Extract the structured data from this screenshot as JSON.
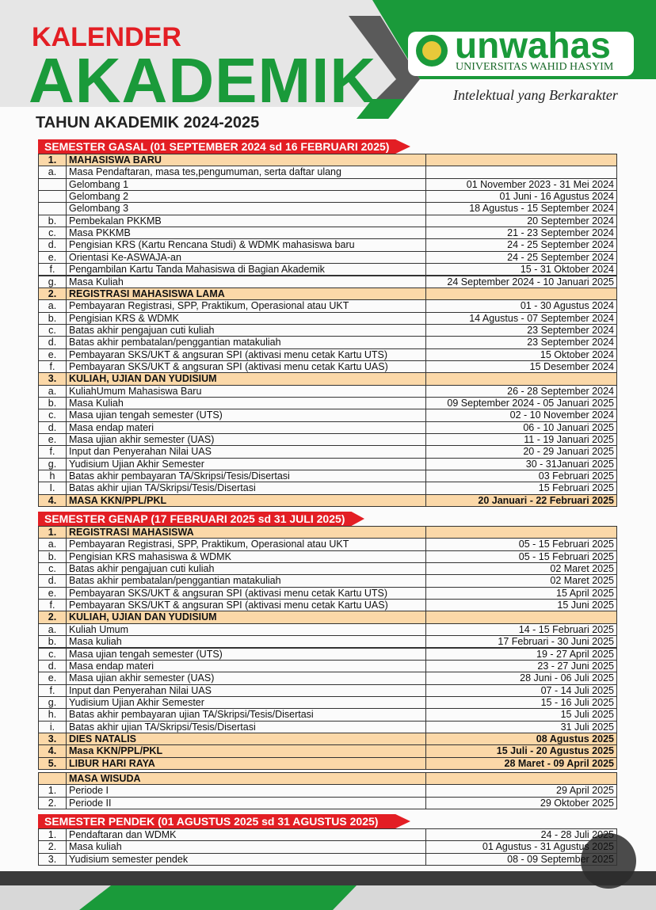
{
  "header": {
    "kalender": "KALENDER",
    "akademik": "AKADEMIK",
    "logo": "unwahas",
    "university": "UNIVERSITAS WAHID HASYIM",
    "tagline": "Intelektual yang Berkarakter",
    "year": "TAHUN AKADEMIK 2024-2025"
  },
  "sections": [
    {
      "title": "SEMESTER GASAL (01 SEPTEMBER 2024 sd 16 FEBRUARI 2025)",
      "groups": [
        {
          "no": "1.",
          "title": "MAHASISWA BARU",
          "rows": [
            {
              "no": "a.",
              "text": "Masa Pendaftaran, masa tes,pengumuman, serta daftar ulang"
            },
            {
              "text": "Gelombang 1",
              "date": "01 November 2023 - 31 Mei 2024"
            },
            {
              "text": "Gelombang 2",
              "date": "01 Juni - 16 Agustus 2024"
            },
            {
              "text": "Gelombang 3",
              "date": "18 Agustus - 15 September 2024"
            },
            {
              "no": "b.",
              "text": "Pembekalan PKKMB",
              "date": "20 September 2024"
            },
            {
              "no": "c.",
              "text": "Masa PKKMB",
              "date": "21 - 23 September 2024"
            },
            {
              "no": "d.",
              "text": "Pengisian KRS (Kartu Rencana Studi) & WDMK mahasiswa baru",
              "date": "24 - 25 September 2024"
            },
            {
              "no": "e.",
              "text": "Orientasi Ke-ASWAJA-an",
              "date": "24 - 25 September 2024"
            },
            {
              "no": "f.",
              "text": "Pengambilan Kartu Tanda Mahasiswa di Bagian Akademik",
              "date": "15 - 31 Oktober 2024"
            },
            {
              "no": "g.",
              "text": "Masa Kuliah",
              "date": "24 September 2024 - 10 Januari 2025"
            }
          ]
        },
        {
          "no": "2.",
          "title": "REGISTRASI MAHASISWA  LAMA",
          "rows": [
            {
              "no": "a.",
              "text": "Pembayaran Registrasi, SPP, Praktikum, Operasional atau UKT",
              "date": "01 - 30 Agustus 2024"
            },
            {
              "no": "b.",
              "text": "Pengisian KRS & WDMK",
              "date": "14 Agustus - 07 September 2024"
            },
            {
              "no": "c.",
              "text": "Batas akhir pengajuan cuti kuliah",
              "date": "23 September 2024"
            },
            {
              "no": "d.",
              "text": "Batas akhir pembatalan/penggantian matakuliah",
              "date": "23 September 2024"
            },
            {
              "no": "e.",
              "text": "Pembayaran SKS/UKT & angsuran SPI (aktivasi menu cetak Kartu UTS)",
              "date": "15 Oktober 2024"
            },
            {
              "no": "f.",
              "text": "Pembayaran SKS/UKT & angsuran SPI (aktivasi menu cetak Kartu UAS)",
              "date": "15 Desember 2024"
            }
          ]
        },
        {
          "no": "3.",
          "title": "KULIAH, UJIAN DAN YUDISIUM",
          "rows": [
            {
              "no": "a.",
              "text": "KuliahUmum Mahasiswa Baru",
              "date": "26 - 28 September 2024"
            },
            {
              "no": "b.",
              "text": "Masa Kuliah",
              "date": "09 September 2024  - 05 Januari 2025"
            },
            {
              "no": "c.",
              "text": "Masa ujian tengah semester (UTS)",
              "date": "02 - 10 November 2024"
            },
            {
              "no": "d.",
              "text": "Masa endap materi",
              "date": "06 - 10 Januari 2025"
            },
            {
              "no": "e.",
              "text": "Masa ujian akhir semester (UAS)",
              "date": "11 - 19 Januari 2025"
            },
            {
              "no": "f.",
              "text": "Input dan Penyerahan Nilai UAS",
              "date": "20 - 29 Januari 2025"
            },
            {
              "no": "g.",
              "text": "Yudisium Ujian Akhir Semester",
              "date": "30 - 31Januari 2025"
            },
            {
              "no": "h",
              "text": "Batas akhir pembayaran TA/Skripsi/Tesis/Disertasi",
              "date": "03 Februari 2025"
            },
            {
              "no": "I.",
              "text": "Batas akhir ujian TA/Skripsi/Tesis/Disertasi",
              "date": "15 Februari 2025"
            }
          ]
        },
        {
          "no": "4.",
          "title": "MASA KKN/PPL/PKL",
          "date": "20 Januari - 22 Februari 2025"
        }
      ]
    },
    {
      "title": "SEMESTER GENAP (17 FEBRUARI 2025 sd 31 JULI 2025)",
      "groups": [
        {
          "no": "1.",
          "title": "REGISTRASI MAHASISWA",
          "rows": [
            {
              "no": "a.",
              "text": "Pembayaran Registrasi, SPP, Praktikum, Operasional atau UKT",
              "date": "05 - 15 Februari 2025"
            },
            {
              "no": "b.",
              "text": "Pengisian KRS mahasiswa & WDMK",
              "date": "05 - 15 Februari 2025"
            },
            {
              "no": "c.",
              "text": "Batas akhir pengajuan cuti kuliah",
              "date": "02 Maret 2025"
            },
            {
              "no": "d.",
              "text": "Batas akhir pembatalan/penggantian matakuliah",
              "date": "02 Maret 2025"
            },
            {
              "no": "e.",
              "text": "Pembayaran SKS/UKT & angsuran SPI (aktivasi menu cetak Kartu UTS)",
              "date": "15 April 2025"
            },
            {
              "no": "f.",
              "text": "Pembayaran SKS/UKT & angsuran SPI (aktivasi menu cetak Kartu UAS)",
              "date": "15 Juni 2025"
            }
          ]
        },
        {
          "no": "2.",
          "title": "KULIAH, UJIAN DAN YUDISIUM",
          "rows": [
            {
              "no": "a.",
              "text": "Kuliah Umum",
              "date": "14 - 15 Februari 2025"
            },
            {
              "no": "b.",
              "text": "Masa kuliah",
              "date": "17 Februari - 30 Juni 2025"
            },
            {
              "no": "c.",
              "text": "Masa ujian tengah semester (UTS)",
              "date": "19 - 27 April 2025"
            },
            {
              "no": "d.",
              "text": "Masa endap materi",
              "date": "23 - 27 Juni 2025"
            },
            {
              "no": "e.",
              "text": "Masa ujian akhir semester (UAS)",
              "date": "28 Juni - 06 Juli 2025"
            },
            {
              "no": "f.",
              "text": "Input dan Penyerahan Nilai UAS",
              "date": "07 - 14 Juli 2025"
            },
            {
              "no": "g.",
              "text": "Yudisium Ujian Akhir Semester",
              "date": "15 - 16 Juli 2025"
            },
            {
              "no": "h.",
              "text": "Batas akhir pembayaran ujian TA/Skripsi/Tesis/Disertasi",
              "date": "15 Juli 2025"
            },
            {
              "no": "i.",
              "text": "Batas akhir ujian TA/Skripsi/Tesis/Disertasi",
              "date": "31 Juli 2025"
            }
          ]
        },
        {
          "no": "3.",
          "title": "DIES NATALIS",
          "date": "08 Agustus 2025"
        },
        {
          "no": "4.",
          "title": "Masa KKN/PPL/PKL",
          "date": "15 Juli - 20 Agustus 2025"
        },
        {
          "no": "5.",
          "title": "LIBUR HARI RAYA",
          "date": "28 Maret - 09 April 2025"
        }
      ]
    },
    {
      "groups": [
        {
          "title": "MASA WISUDA",
          "rows": [
            {
              "no": "1.",
              "text": "Periode I",
              "date": "29 April 2025"
            },
            {
              "no": "2.",
              "text": "Periode II",
              "date": "29 Oktober 2025"
            }
          ]
        }
      ]
    },
    {
      "title": "SEMESTER PENDEK (01 AGUSTUS 2025 sd 31 AGUSTUS 2025)",
      "groups": [
        {
          "rows": [
            {
              "no": "1.",
              "text": "Pendaftaran dan WDMK",
              "date": "24 - 28 Juli 2025"
            },
            {
              "no": "2.",
              "text": "Masa kuliah",
              "date": "01 Agustus - 31 Agustus 2025"
            },
            {
              "no": "3.",
              "text": "Yudisium semester pendek",
              "date": "08 - 09 September 2025"
            }
          ]
        }
      ]
    }
  ]
}
